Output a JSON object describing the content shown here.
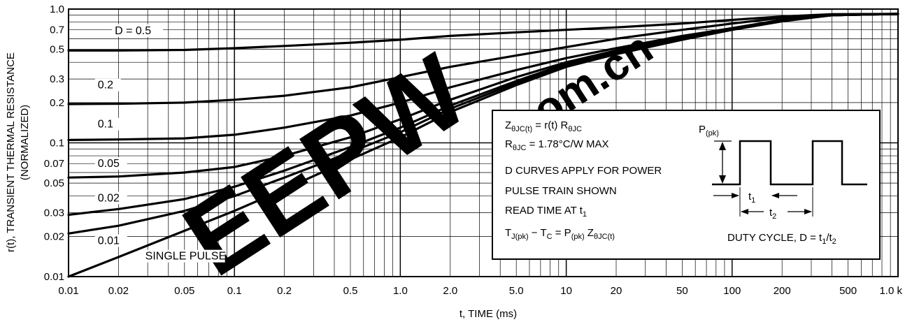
{
  "chart_data": {
    "type": "line",
    "xscale": "log",
    "yscale": "log",
    "xlim": [
      0.01,
      1000
    ],
    "ylim": [
      0.01,
      1.0
    ],
    "grid": true,
    "xlabel": "t, TIME (ms)",
    "ylabel": "r(t), TRANSIENT THERMAL RESISTANCE",
    "ylabel2": "(NORMALIZED)",
    "x_ticks": [
      {
        "v": 0.01,
        "label": "0.01"
      },
      {
        "v": 0.02,
        "label": "0.02"
      },
      {
        "v": 0.05,
        "label": "0.05"
      },
      {
        "v": 0.1,
        "label": "0.1"
      },
      {
        "v": 0.2,
        "label": "0.2"
      },
      {
        "v": 0.5,
        "label": "0.5"
      },
      {
        "v": 1,
        "label": "1.0"
      },
      {
        "v": 2,
        "label": "2.0"
      },
      {
        "v": 5,
        "label": "5.0"
      },
      {
        "v": 10,
        "label": "10"
      },
      {
        "v": 20,
        "label": "20"
      },
      {
        "v": 50,
        "label": "50"
      },
      {
        "v": 100,
        "label": "100"
      },
      {
        "v": 200,
        "label": "200"
      },
      {
        "v": 500,
        "label": "500"
      },
      {
        "v": 1000,
        "label": "1.0 k"
      }
    ],
    "y_ticks": [
      {
        "v": 0.01,
        "label": "0.01"
      },
      {
        "v": 0.02,
        "label": "0.02"
      },
      {
        "v": 0.03,
        "label": "0.03"
      },
      {
        "v": 0.05,
        "label": "0.05"
      },
      {
        "v": 0.07,
        "label": "0.07"
      },
      {
        "v": 0.1,
        "label": "0.1"
      },
      {
        "v": 0.2,
        "label": "0.2"
      },
      {
        "v": 0.3,
        "label": "0.3"
      },
      {
        "v": 0.5,
        "label": "0.5"
      },
      {
        "v": 0.7,
        "label": "0.7"
      },
      {
        "v": 1.0,
        "label": "1.0"
      }
    ],
    "series": [
      {
        "name": "D = 0.5",
        "label_at": [
          0.019,
          0.65
        ],
        "points": [
          [
            0.01,
            0.49
          ],
          [
            0.02,
            0.49
          ],
          [
            0.05,
            0.495
          ],
          [
            0.1,
            0.51
          ],
          [
            0.2,
            0.53
          ],
          [
            0.5,
            0.56
          ],
          [
            1,
            0.59
          ],
          [
            2,
            0.63
          ],
          [
            5,
            0.67
          ],
          [
            10,
            0.7
          ],
          [
            20,
            0.73
          ],
          [
            50,
            0.78
          ],
          [
            100,
            0.83
          ],
          [
            200,
            0.88
          ],
          [
            400,
            0.915
          ],
          [
            1000,
            0.92
          ]
        ]
      },
      {
        "name": "0.2",
        "label_at": [
          0.015,
          0.255
        ],
        "points": [
          [
            0.01,
            0.195
          ],
          [
            0.02,
            0.196
          ],
          [
            0.05,
            0.2
          ],
          [
            0.1,
            0.21
          ],
          [
            0.2,
            0.225
          ],
          [
            0.5,
            0.26
          ],
          [
            1,
            0.31
          ],
          [
            2,
            0.37
          ],
          [
            5,
            0.45
          ],
          [
            10,
            0.52
          ],
          [
            20,
            0.6
          ],
          [
            50,
            0.7
          ],
          [
            100,
            0.78
          ],
          [
            200,
            0.86
          ],
          [
            400,
            0.91
          ],
          [
            1000,
            0.92
          ]
        ]
      },
      {
        "name": "0.1",
        "label_at": [
          0.015,
          0.13
        ],
        "points": [
          [
            0.01,
            0.105
          ],
          [
            0.02,
            0.106
          ],
          [
            0.05,
            0.108
          ],
          [
            0.1,
            0.115
          ],
          [
            0.2,
            0.13
          ],
          [
            0.5,
            0.16
          ],
          [
            1,
            0.2
          ],
          [
            2,
            0.26
          ],
          [
            5,
            0.35
          ],
          [
            10,
            0.43
          ],
          [
            20,
            0.51
          ],
          [
            50,
            0.63
          ],
          [
            100,
            0.72
          ],
          [
            200,
            0.83
          ],
          [
            400,
            0.9
          ],
          [
            1000,
            0.92
          ]
        ]
      },
      {
        "name": "0.05",
        "label_at": [
          0.015,
          0.066
        ],
        "points": [
          [
            0.01,
            0.055
          ],
          [
            0.02,
            0.056
          ],
          [
            0.05,
            0.06
          ],
          [
            0.1,
            0.066
          ],
          [
            0.2,
            0.08
          ],
          [
            0.5,
            0.11
          ],
          [
            1,
            0.15
          ],
          [
            2,
            0.21
          ],
          [
            5,
            0.31
          ],
          [
            10,
            0.4
          ],
          [
            20,
            0.49
          ],
          [
            50,
            0.62
          ],
          [
            100,
            0.72
          ],
          [
            200,
            0.83
          ],
          [
            400,
            0.9
          ],
          [
            1000,
            0.92
          ]
        ]
      },
      {
        "name": "0.02",
        "label_at": [
          0.015,
          0.0365
        ],
        "points": [
          [
            0.01,
            0.029
          ],
          [
            0.02,
            0.032
          ],
          [
            0.05,
            0.038
          ],
          [
            0.1,
            0.047
          ],
          [
            0.2,
            0.062
          ],
          [
            0.5,
            0.093
          ],
          [
            1,
            0.13
          ],
          [
            2,
            0.19
          ],
          [
            5,
            0.29
          ],
          [
            10,
            0.39
          ],
          [
            20,
            0.48
          ],
          [
            50,
            0.61
          ],
          [
            100,
            0.71
          ],
          [
            200,
            0.82
          ],
          [
            400,
            0.9
          ],
          [
            1000,
            0.92
          ]
        ]
      },
      {
        "name": "0.01",
        "label_at": [
          0.015,
          0.0175
        ],
        "points": [
          [
            0.01,
            0.021
          ],
          [
            0.02,
            0.024
          ],
          [
            0.05,
            0.031
          ],
          [
            0.1,
            0.04
          ],
          [
            0.2,
            0.055
          ],
          [
            0.5,
            0.085
          ],
          [
            1,
            0.12
          ],
          [
            2,
            0.18
          ],
          [
            5,
            0.28
          ],
          [
            10,
            0.38
          ],
          [
            20,
            0.47
          ],
          [
            50,
            0.6
          ],
          [
            100,
            0.7
          ],
          [
            200,
            0.82
          ],
          [
            400,
            0.9
          ],
          [
            1000,
            0.92
          ]
        ]
      },
      {
        "name": "SINGLE PULSE",
        "label_at": [
          0.029,
          0.0134
        ],
        "points": [
          [
            0.01,
            0.01
          ],
          [
            0.02,
            0.014
          ],
          [
            0.05,
            0.022
          ],
          [
            0.1,
            0.031
          ],
          [
            0.2,
            0.045
          ],
          [
            0.5,
            0.075
          ],
          [
            1,
            0.11
          ],
          [
            2,
            0.17
          ],
          [
            5,
            0.27
          ],
          [
            10,
            0.37
          ],
          [
            20,
            0.46
          ],
          [
            50,
            0.59
          ],
          [
            100,
            0.7
          ],
          [
            200,
            0.81
          ],
          [
            400,
            0.9
          ],
          [
            1000,
            0.92
          ]
        ]
      }
    ],
    "annotation_box": {
      "lines": [
        {
          "main": "Z",
          "sub": "θJC(t)",
          "rest": " = r(t) R",
          "sub2": "θJC"
        },
        {
          "main": "R",
          "sub": "θJC",
          "rest": " = 1.78°C/W MAX"
        },
        {
          "text": "D CURVES APPLY FOR POWER"
        },
        {
          "text": "PULSE TRAIN SHOWN"
        },
        {
          "main": "READ TIME AT t",
          "sub": "1"
        },
        {
          "main": "T",
          "sub": "J(pk)",
          "rest": " − T",
          "sub2": "C",
          "rest2": " = P",
          "sub3": "(pk)",
          "rest3": " Z",
          "sub4": "θJC(t)"
        }
      ],
      "pulse_label": {
        "main": "P",
        "sub": "(pk)"
      },
      "t1_label": {
        "main": "t",
        "sub": "1"
      },
      "t2_label": {
        "main": "t",
        "sub": "2"
      },
      "duty_cycle": {
        "main": "DUTY CYCLE, D = t",
        "sub": "1",
        "rest": "/t",
        "sub2": "2"
      }
    },
    "watermark": {
      "text1": "EEPW",
      "text2": ".com.cn",
      "color": "#e8232a"
    }
  }
}
